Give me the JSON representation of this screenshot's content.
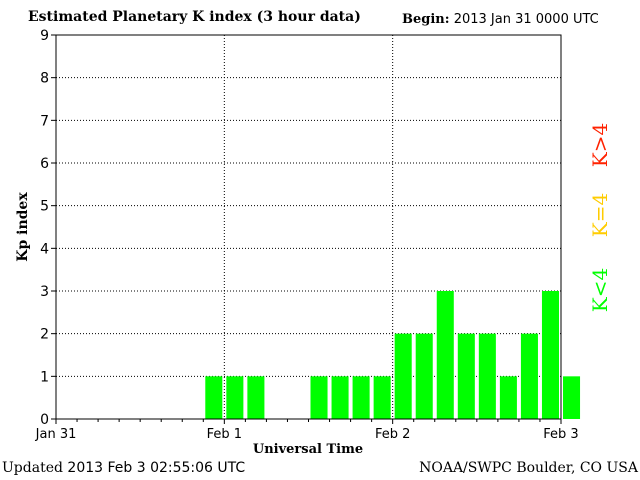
{
  "header": {
    "title": "Estimated Planetary K index (3 hour data)",
    "begin_label": "Begin:",
    "begin_value": "2013 Jan 31 0000 UTC"
  },
  "footer": {
    "updated_label": "Updated",
    "updated_value": "2013 Feb  3 02:55:06 UTC",
    "credit": "NOAA/SWPC Boulder, CO USA"
  },
  "legend": {
    "items": [
      {
        "label": "K>4",
        "color": "#ff2200"
      },
      {
        "label": "K=4",
        "color": "#ffcc00"
      },
      {
        "label": "K<4",
        "color": "#00ff00"
      }
    ]
  },
  "chart_data": {
    "type": "bar",
    "title": "Estimated Planetary K index (3 hour data)",
    "xlabel": "Universal Time",
    "ylabel": "Kp index",
    "ylim": [
      0,
      9
    ],
    "yticks": [
      0,
      1,
      2,
      3,
      4,
      5,
      6,
      7,
      8,
      9
    ],
    "xticks": [
      "Jan 31",
      "Feb 1",
      "Feb 2",
      "Feb 3"
    ],
    "slots_per_day": 8,
    "grid": true,
    "bar_color": "#00ff00",
    "values": [
      0,
      0,
      0,
      0,
      0,
      0,
      0,
      1,
      1,
      1,
      0,
      0,
      1,
      1,
      1,
      1,
      2,
      2,
      3,
      2,
      2,
      1,
      2,
      3,
      1
    ]
  }
}
